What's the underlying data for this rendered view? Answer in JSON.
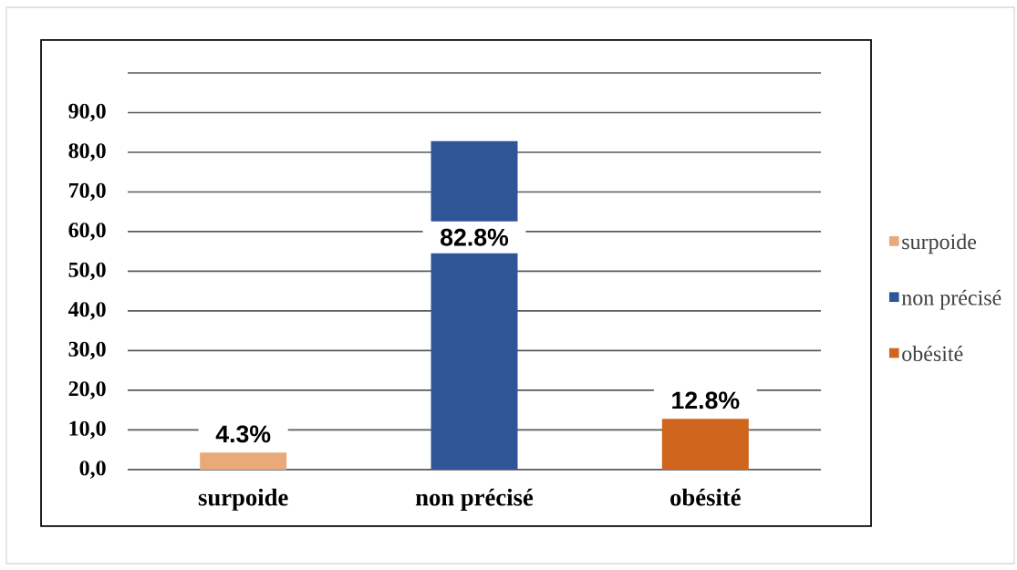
{
  "chart_data": {
    "type": "bar",
    "categories": [
      "surpoide",
      "non précisé",
      "obésité"
    ],
    "series": [
      {
        "name": "surpoide",
        "color": "#e9a979",
        "values": [
          4.3,
          null,
          null
        ],
        "value_labels": [
          "4.3%",
          null,
          null
        ]
      },
      {
        "name": "non précisé",
        "color": "#2f5597",
        "values": [
          null,
          82.8,
          null
        ],
        "value_labels": [
          null,
          "82.8%",
          null
        ]
      },
      {
        "name": "obésité",
        "color": "#d0651e",
        "values": [
          null,
          null,
          12.8
        ],
        "value_labels": [
          null,
          null,
          "12.8%"
        ]
      }
    ],
    "ylim": [
      0,
      100
    ],
    "yticks": [
      {
        "value": 0,
        "label": "0,0"
      },
      {
        "value": 10,
        "label": "10,0"
      },
      {
        "value": 20,
        "label": "20,0"
      },
      {
        "value": 30,
        "label": "30,0"
      },
      {
        "value": 40,
        "label": "40,0"
      },
      {
        "value": 50,
        "label": "50,0"
      },
      {
        "value": 60,
        "label": "60,0"
      },
      {
        "value": 70,
        "label": "70,0"
      },
      {
        "value": 80,
        "label": "80,0"
      },
      {
        "value": 90,
        "label": "90,0"
      },
      {
        "value": 100,
        "label": null
      }
    ],
    "grid": "y",
    "legend": "right"
  }
}
